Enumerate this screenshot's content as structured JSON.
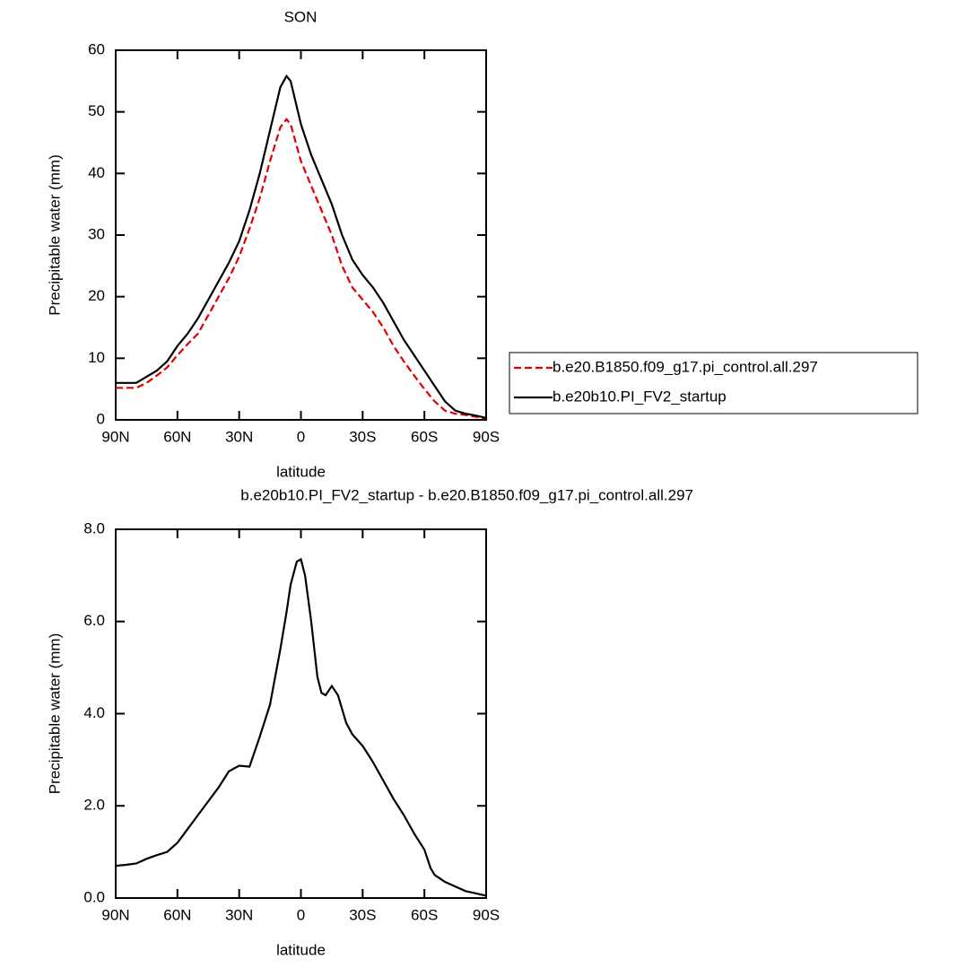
{
  "chart_data": [
    {
      "type": "line",
      "title": "SON",
      "x_label": "latitude",
      "y_label": "Precipitable water (mm)",
      "x": [
        90,
        85,
        80,
        75,
        70,
        65,
        60,
        55,
        50,
        45,
        40,
        35,
        30,
        25,
        20,
        15,
        10,
        7,
        5,
        0,
        -5,
        -10,
        -15,
        -20,
        -25,
        -30,
        -35,
        -40,
        -45,
        -50,
        -55,
        -60,
        -65,
        -70,
        -75,
        -80,
        -85,
        -90
      ],
      "series": [
        {
          "name": "b.e20.B1850.f09_g17.pi_control.all.297",
          "color": "#e00000",
          "line_style": "dashed",
          "values": [
            5.2,
            5.2,
            5.2,
            6,
            7.2,
            8.5,
            10.5,
            12.3,
            14,
            17,
            20,
            23,
            26.5,
            31,
            36,
            42,
            47.5,
            48.8,
            48,
            42,
            38,
            34,
            30,
            25,
            21.5,
            19.5,
            17.5,
            15,
            12,
            9.5,
            7.2,
            5,
            3,
            1.5,
            1,
            0.8,
            0.5,
            0.2
          ]
        },
        {
          "name": "b.e20b10.PI_FV2_startup",
          "color": "#000000",
          "line_style": "solid",
          "values": [
            6,
            6,
            6,
            7,
            8,
            9.5,
            12,
            14,
            16.5,
            19.5,
            22.5,
            25.5,
            29,
            34,
            40,
            47,
            54,
            55.8,
            55,
            48,
            43,
            39,
            35,
            30,
            26,
            23.5,
            21.5,
            19,
            16,
            13,
            10.5,
            8,
            5.5,
            3,
            1.5,
            1,
            0.7,
            0.3
          ]
        }
      ],
      "xlim": [
        90,
        -90
      ],
      "xticks": [
        {
          "value": 90,
          "label": "90N"
        },
        {
          "value": 60,
          "label": "60N"
        },
        {
          "value": 30,
          "label": "30N"
        },
        0,
        {
          "value": -30,
          "label": "30S"
        },
        {
          "value": -60,
          "label": "60S"
        },
        {
          "value": -90,
          "label": "90S"
        }
      ],
      "ylim": [
        0,
        60
      ],
      "yticks": [
        0,
        10,
        20,
        30,
        40,
        50,
        60
      ],
      "legend": "right"
    },
    {
      "type": "line",
      "title": "b.e20b10.PI_FV2_startup - b.e20.B1850.f09_g17.pi_control.all.297",
      "x_label": "latitude",
      "y_label": "Precipitable water (mm)",
      "x": [
        90,
        85,
        80,
        75,
        70,
        65,
        60,
        55,
        50,
        45,
        40,
        35,
        30,
        25,
        20,
        15,
        10,
        7,
        5,
        2,
        0,
        -2,
        -5,
        -8,
        -10,
        -12,
        -15,
        -18,
        -22,
        -25,
        -30,
        -35,
        -40,
        -45,
        -50,
        -55,
        -60,
        -63,
        -65,
        -70,
        -75,
        -80,
        -85,
        -90
      ],
      "series": [
        {
          "color": "#000000",
          "line_style": "solid",
          "values": [
            0.7,
            0.72,
            0.75,
            0.85,
            0.93,
            1.0,
            1.2,
            1.5,
            1.8,
            2.1,
            2.4,
            2.75,
            2.87,
            2.85,
            3.5,
            4.2,
            5.4,
            6.2,
            6.8,
            7.3,
            7.35,
            7.0,
            6.0,
            4.8,
            4.45,
            4.4,
            4.6,
            4.4,
            3.8,
            3.55,
            3.3,
            2.95,
            2.55,
            2.15,
            1.8,
            1.4,
            1.05,
            0.65,
            0.5,
            0.35,
            0.25,
            0.15,
            0.1,
            0.05
          ]
        }
      ],
      "xlim": [
        90,
        -90
      ],
      "xticks": [
        {
          "value": 90,
          "label": "90N"
        },
        {
          "value": 60,
          "label": "60N"
        },
        {
          "value": 30,
          "label": "30N"
        },
        0,
        {
          "value": -30,
          "label": "30S"
        },
        {
          "value": -60,
          "label": "60S"
        },
        {
          "value": -90,
          "label": "90S"
        }
      ],
      "ylim": [
        0,
        8
      ],
      "yticks": [
        {
          "value": 0,
          "label": "0.0"
        },
        {
          "value": 2,
          "label": "2.0"
        },
        {
          "value": 4,
          "label": "4.0"
        },
        {
          "value": 6,
          "label": "6.0"
        },
        {
          "value": 8,
          "label": "8.0"
        }
      ]
    }
  ]
}
